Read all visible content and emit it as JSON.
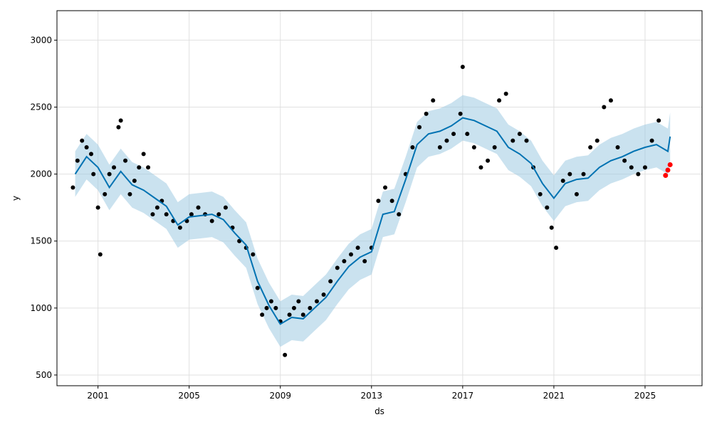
{
  "chart_data": {
    "type": "scatter",
    "title": "",
    "xlabel": "ds",
    "ylabel": "y",
    "xlim": [
      1999.2,
      2027.5
    ],
    "ylim": [
      420,
      3220
    ],
    "grid": true,
    "x_ticks": [
      2001,
      2005,
      2009,
      2013,
      2017,
      2021,
      2025
    ],
    "x_tick_labels": [
      "2001",
      "2005",
      "2009",
      "2013",
      "2017",
      "2021",
      "2025"
    ],
    "y_ticks": [
      500,
      1000,
      1500,
      2000,
      2500,
      3000
    ],
    "y_tick_labels": [
      "500",
      "1000",
      "1500",
      "2000",
      "2500",
      "3000"
    ],
    "colors": {
      "observed": "#000000",
      "recent_observed": "#ff0000",
      "forecast": "#0072B2",
      "uncertainty_band": "#9ecae1",
      "grid": "#e0e0e0"
    },
    "series": [
      {
        "kind": "observed_points",
        "x": [
          1999.9,
          2000.1,
          2000.3,
          2000.5,
          2000.7,
          2000.8,
          2001.0,
          2001.1,
          2001.3,
          2001.5,
          2001.7,
          2001.9,
          2002.0,
          2002.2,
          2002.4,
          2002.6,
          2002.8,
          2003.0,
          2003.2,
          2003.4,
          2003.6,
          2003.8,
          2004.0,
          2004.3,
          2004.6,
          2004.9,
          2005.1,
          2005.4,
          2005.7,
          2006.0,
          2006.3,
          2006.6,
          2006.9,
          2007.2,
          2007.5,
          2007.8,
          2008.0,
          2008.2,
          2008.4,
          2008.6,
          2008.8,
          2009.0,
          2009.2,
          2009.4,
          2009.6,
          2009.8,
          2010.0,
          2010.3,
          2010.6,
          2010.9,
          2011.2,
          2011.5,
          2011.8,
          2012.1,
          2012.4,
          2012.7,
          2013.0,
          2013.3,
          2013.6,
          2013.9,
          2014.2,
          2014.5,
          2014.8,
          2015.1,
          2015.4,
          2015.7,
          2016.0,
          2016.3,
          2016.6,
          2016.9,
          2017.0,
          2017.2,
          2017.5,
          2017.8,
          2018.1,
          2018.4,
          2018.6,
          2018.9,
          2019.2,
          2019.5,
          2019.8,
          2020.1,
          2020.4,
          2020.7,
          2020.9,
          2021.1,
          2021.4,
          2021.7,
          2022.0,
          2022.3,
          2022.6,
          2022.9,
          2023.2,
          2023.5,
          2023.8,
          2024.1,
          2024.4,
          2024.7,
          2025.0,
          2025.3,
          2025.6
        ],
        "y": [
          1900,
          2100,
          2250,
          2200,
          2150,
          2000,
          1750,
          1400,
          1850,
          2000,
          2050,
          2350,
          2400,
          2100,
          1850,
          1950,
          2050,
          2150,
          2050,
          1700,
          1750,
          1800,
          1700,
          1650,
          1600,
          1650,
          1700,
          1750,
          1700,
          1650,
          1700,
          1750,
          1600,
          1500,
          1450,
          1400,
          1150,
          950,
          1000,
          1050,
          1000,
          900,
          650,
          950,
          1000,
          1050,
          950,
          1000,
          1050,
          1100,
          1200,
          1300,
          1350,
          1400,
          1450,
          1350,
          1450,
          1800,
          1900,
          1800,
          1700,
          2000,
          2200,
          2350,
          2450,
          2550,
          2200,
          2250,
          2300,
          2450,
          2800,
          2300,
          2200,
          2050,
          2100,
          2200,
          2550,
          2600,
          2250,
          2300,
          2250,
          2050,
          1850,
          1750,
          1600,
          1450,
          1950,
          2000,
          1850,
          2000,
          2200,
          2250,
          2500,
          2550,
          2200,
          2100,
          2050,
          2000,
          2050,
          2250,
          2400
        ]
      },
      {
        "kind": "recent_observed_points",
        "x": [
          2025.9,
          2026.0,
          2026.1
        ],
        "y": [
          1990,
          2030,
          2070
        ]
      },
      {
        "kind": "forecast_line",
        "x": [
          2000.0,
          2000.5,
          2001.0,
          2001.5,
          2002.0,
          2002.5,
          2003.0,
          2003.5,
          2004.0,
          2004.5,
          2005.0,
          2005.5,
          2006.0,
          2006.5,
          2007.0,
          2007.5,
          2008.0,
          2008.5,
          2009.0,
          2009.5,
          2010.0,
          2010.5,
          2011.0,
          2011.5,
          2012.0,
          2012.5,
          2013.0,
          2013.5,
          2014.0,
          2014.5,
          2015.0,
          2015.5,
          2016.0,
          2016.5,
          2017.0,
          2017.5,
          2018.0,
          2018.5,
          2019.0,
          2019.5,
          2020.0,
          2020.5,
          2021.0,
          2021.5,
          2022.0,
          2022.5,
          2023.0,
          2023.5,
          2024.0,
          2024.5,
          2025.0,
          2025.5,
          2026.0,
          2026.1
        ],
        "y": [
          2000,
          2130,
          2050,
          1900,
          2020,
          1920,
          1880,
          1820,
          1760,
          1620,
          1680,
          1690,
          1700,
          1660,
          1560,
          1470,
          1200,
          1020,
          880,
          930,
          920,
          1000,
          1080,
          1200,
          1310,
          1380,
          1420,
          1700,
          1720,
          1960,
          2220,
          2300,
          2320,
          2360,
          2420,
          2400,
          2360,
          2320,
          2200,
          2150,
          2080,
          1930,
          1820,
          1930,
          1960,
          1970,
          2050,
          2100,
          2130,
          2170,
          2200,
          2220,
          2170,
          2280
        ]
      },
      {
        "kind": "uncertainty_band",
        "x": [
          2000.0,
          2000.5,
          2001.0,
          2001.5,
          2002.0,
          2002.5,
          2003.0,
          2003.5,
          2004.0,
          2004.5,
          2005.0,
          2005.5,
          2006.0,
          2006.5,
          2007.0,
          2007.5,
          2008.0,
          2008.5,
          2009.0,
          2009.5,
          2010.0,
          2010.5,
          2011.0,
          2011.5,
          2012.0,
          2012.5,
          2013.0,
          2013.5,
          2014.0,
          2014.5,
          2015.0,
          2015.5,
          2016.0,
          2016.5,
          2017.0,
          2017.5,
          2018.0,
          2018.5,
          2019.0,
          2019.5,
          2020.0,
          2020.5,
          2021.0,
          2021.5,
          2022.0,
          2022.5,
          2023.0,
          2023.5,
          2024.0,
          2024.5,
          2025.0,
          2025.5,
          2026.0,
          2026.1
        ],
        "lower": [
          1830,
          1960,
          1880,
          1730,
          1850,
          1750,
          1710,
          1650,
          1590,
          1450,
          1510,
          1520,
          1530,
          1490,
          1390,
          1300,
          1030,
          850,
          710,
          760,
          750,
          830,
          910,
          1030,
          1140,
          1210,
          1250,
          1530,
          1550,
          1790,
          2050,
          2130,
          2150,
          2190,
          2250,
          2230,
          2190,
          2150,
          2030,
          1980,
          1910,
          1760,
          1650,
          1760,
          1790,
          1800,
          1880,
          1930,
          1960,
          2000,
          2030,
          2050,
          2000,
          2100
        ],
        "upper": [
          2170,
          2300,
          2220,
          2070,
          2190,
          2090,
          2050,
          1990,
          1930,
          1790,
          1850,
          1860,
          1870,
          1830,
          1730,
          1640,
          1370,
          1190,
          1050,
          1100,
          1090,
          1170,
          1250,
          1370,
          1480,
          1550,
          1590,
          1870,
          1890,
          2130,
          2390,
          2470,
          2490,
          2530,
          2590,
          2570,
          2530,
          2490,
          2370,
          2320,
          2250,
          2100,
          1990,
          2100,
          2130,
          2140,
          2220,
          2270,
          2300,
          2340,
          2370,
          2390,
          2340,
          2460
        ]
      }
    ]
  }
}
